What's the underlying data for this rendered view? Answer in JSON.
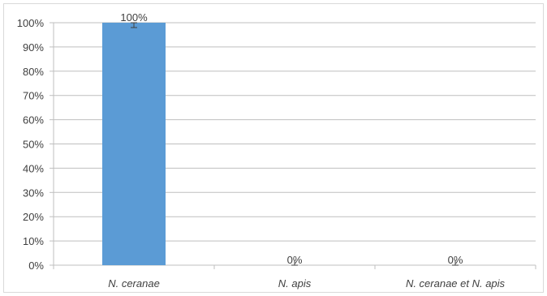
{
  "chart_data": {
    "type": "bar",
    "categories": [
      "N. ceranae",
      "N. apis",
      "N. ceranae et N. apis"
    ],
    "values": [
      100,
      0,
      0
    ],
    "data_labels": [
      "100%",
      "0%",
      "0%"
    ],
    "error": [
      2,
      2,
      2
    ],
    "ylim": [
      0,
      100
    ],
    "y_ticks": [
      0,
      10,
      20,
      30,
      40,
      50,
      60,
      70,
      80,
      90,
      100
    ],
    "y_tick_labels": [
      "0%",
      "10%",
      "20%",
      "30%",
      "40%",
      "50%",
      "60%",
      "70%",
      "80%",
      "90%",
      "100%"
    ],
    "title": "",
    "xlabel": "",
    "ylabel": "",
    "grid": true,
    "legend": "none",
    "colors": {
      "bar": "#5b9bd5",
      "grid": "#bfbfbf",
      "axis": "#bfbfbf",
      "error": "#404040"
    }
  }
}
